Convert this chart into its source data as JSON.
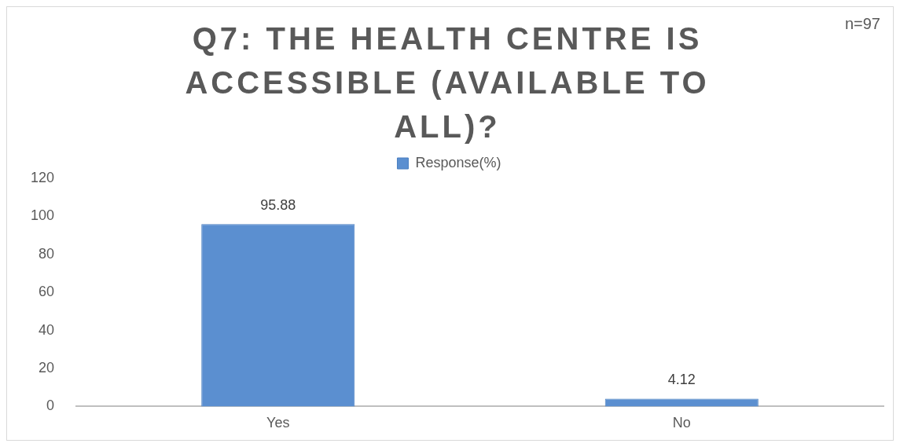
{
  "chart_data": {
    "type": "bar",
    "title": "Q7: THE HEALTH CENTRE IS ACCESSIBLE (AVAILABLE TO ALL)?",
    "annotations": [
      "n=97"
    ],
    "categories": [
      "Yes",
      "No"
    ],
    "series": [
      {
        "name": "Response(%)",
        "color": "#5b8fd0",
        "values": [
          95.88,
          4.12
        ]
      }
    ],
    "ylim": [
      0,
      120
    ],
    "yticks": [
      0,
      20,
      40,
      60,
      80,
      100,
      120
    ],
    "data_labels": true,
    "legend": "top"
  }
}
